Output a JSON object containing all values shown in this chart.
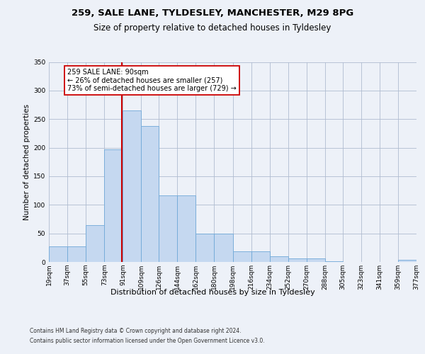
{
  "title1": "259, SALE LANE, TYLDESLEY, MANCHESTER, M29 8PG",
  "title2": "Size of property relative to detached houses in Tyldesley",
  "xlabel": "Distribution of detached houses by size in Tyldesley",
  "ylabel": "Number of detached properties",
  "footnote1": "Contains HM Land Registry data © Crown copyright and database right 2024.",
  "footnote2": "Contains public sector information licensed under the Open Government Licence v3.0.",
  "annotation_line1": "259 SALE LANE: 90sqm",
  "annotation_line2": "← 26% of detached houses are smaller (257)",
  "annotation_line3": "73% of semi-detached houses are larger (729) →",
  "bar_color": "#c5d8f0",
  "bar_edge_color": "#6fa8d8",
  "vline_color": "#cc0000",
  "vline_x": 90,
  "bin_edges": [
    19,
    37,
    55,
    73,
    91,
    109,
    126,
    144,
    162,
    180,
    198,
    216,
    234,
    252,
    270,
    288,
    305,
    323,
    341,
    359,
    377
  ],
  "bar_heights": [
    27,
    27,
    65,
    197,
    265,
    238,
    117,
    117,
    50,
    50,
    18,
    18,
    10,
    6,
    6,
    1,
    0,
    0,
    0,
    4
  ],
  "ylim": [
    0,
    350
  ],
  "yticks": [
    0,
    50,
    100,
    150,
    200,
    250,
    300,
    350
  ],
  "background_color": "#edf1f8",
  "title1_fontsize": 9.5,
  "title2_fontsize": 8.5,
  "ylabel_fontsize": 7.5,
  "xlabel_fontsize": 8.0,
  "tick_fontsize": 6.5,
  "footnote_fontsize": 5.5
}
